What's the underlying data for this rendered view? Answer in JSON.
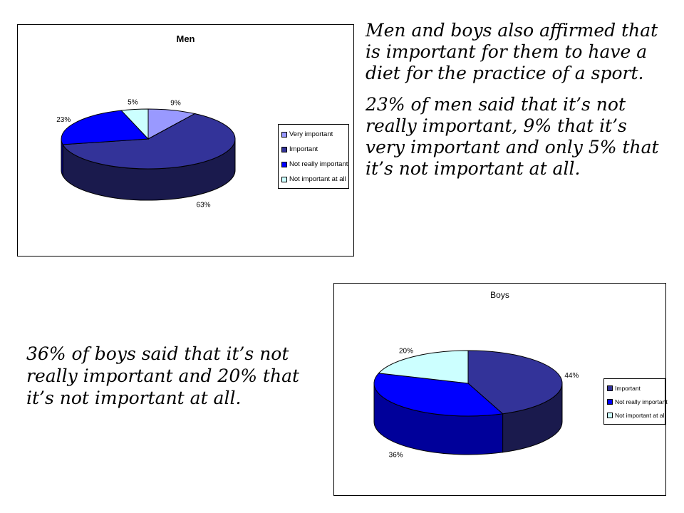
{
  "colors": {
    "very_important": "#9999ff",
    "important": "#333399",
    "important_side": "#1a1a4d",
    "not_really_important": "#0000ff",
    "not_really_side": "#00009a",
    "not_important_at_all": "#ccffff",
    "not_important_side": "#8aa9a9"
  },
  "text": {
    "paragraph1": "Men and boys also affirmed that is important for them to have a diet for the practice of a sport.",
    "paragraph2": "23% of men said that it’s not really important, 9% that it’s very important and only 5% that it’s not important at all.",
    "paragraph3": "36% of boys said that it’s not really important and 20% that it’s not important at all."
  },
  "chart_data": [
    {
      "type": "pie",
      "title": "Men",
      "legend_position": "right",
      "series": [
        {
          "label": "Very important",
          "value": 9,
          "data_label": "9%"
        },
        {
          "label": "Important",
          "value": 63,
          "data_label": "63%"
        },
        {
          "label": "Not really important",
          "value": 23,
          "data_label": "23%"
        },
        {
          "label": "Not important at all",
          "value": 5,
          "data_label": "5%"
        }
      ]
    },
    {
      "type": "pie",
      "title": "Boys",
      "legend_position": "right",
      "series": [
        {
          "label": "Important",
          "value": 44,
          "data_label": "44%"
        },
        {
          "label": "Not really important",
          "value": 36,
          "data_label": "36%"
        },
        {
          "label": "Not important at all",
          "value": 20,
          "data_label": "20%"
        }
      ]
    }
  ]
}
